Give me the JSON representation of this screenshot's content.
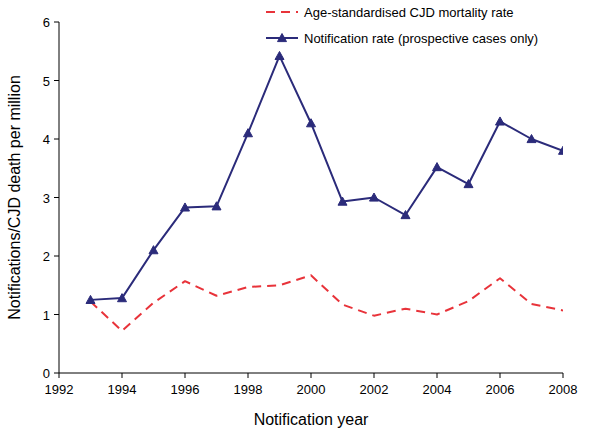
{
  "chart_data": {
    "type": "line",
    "x_label": "Notification year",
    "y_label": "Notifications/CJD death per million",
    "x": [
      1993,
      1994,
      1995,
      1996,
      1997,
      1998,
      1999,
      2000,
      2001,
      2002,
      2003,
      2004,
      2005,
      2006,
      2007,
      2008
    ],
    "series": [
      {
        "name": "Age-standardised CJD mortality rate",
        "color": "#e8333a",
        "line_style": "dashed",
        "marker": "none",
        "values": [
          1.22,
          0.72,
          1.2,
          1.57,
          1.32,
          1.47,
          1.5,
          1.67,
          1.17,
          0.98,
          1.1,
          1.0,
          1.23,
          1.62,
          1.18,
          1.07
        ]
      },
      {
        "name": "Notification rate (prospective cases only)",
        "color": "#2b2b7a",
        "line_style": "solid",
        "marker": "triangle",
        "values": [
          1.25,
          1.28,
          2.1,
          2.83,
          2.85,
          4.1,
          5.42,
          4.27,
          2.93,
          3.0,
          2.7,
          3.52,
          3.23,
          4.3,
          4.0,
          3.8
        ]
      }
    ],
    "xlim": [
      1992,
      2008
    ],
    "xticks": [
      1992,
      1994,
      1996,
      1998,
      2000,
      2002,
      2004,
      2006,
      2008
    ],
    "ylim": [
      0,
      6
    ],
    "yticks": [
      0,
      1,
      2,
      3,
      4,
      5,
      6
    ],
    "grid": false,
    "legend": "upper right"
  }
}
